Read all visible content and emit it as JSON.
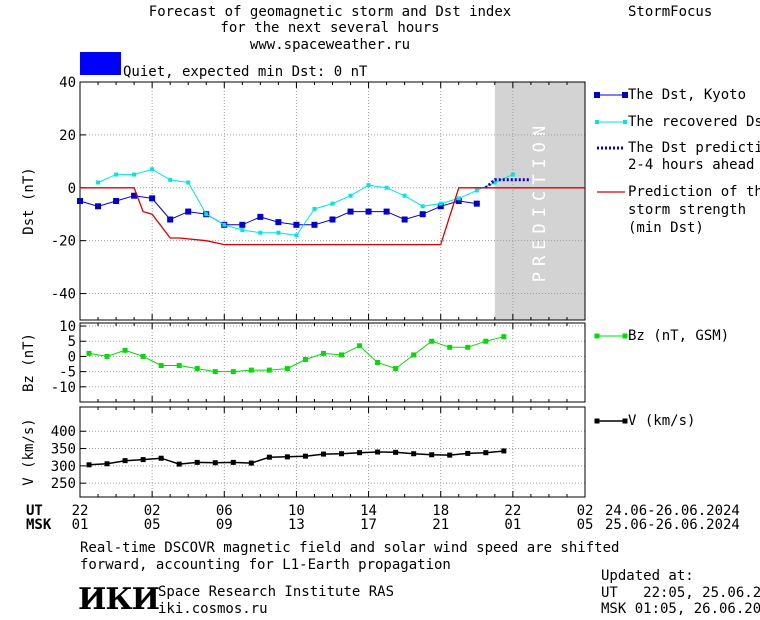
{
  "header": {
    "title_line1": "Forecast of geomagnetic storm and Dst index",
    "title_line2": "for the next several hours",
    "url": "www.spaceweather.ru",
    "brand": "StormFocus"
  },
  "status": {
    "text": "Quiet, expected min Dst: 0 nT",
    "color": "#0000ff"
  },
  "prediction_label": "PREDICTION",
  "colors": {
    "dst": "#0000cc",
    "recovered": "#00e5e5",
    "prediction_dst": "#0000cc",
    "storm": "#dd0000",
    "bz": "#00dd00",
    "v": "#000000",
    "prediction_band": "#d3d3d3",
    "grid": "#9aa0a0"
  },
  "legend": {
    "dst": "The Dst, Kyoto",
    "recovered": "The recovered Dst",
    "prediction_line1": "The Dst prediction",
    "prediction_line2": "2-4 hours ahead",
    "storm_line1": "Prediction of the",
    "storm_line2": "storm strength",
    "storm_line3": "(min Dst)",
    "bz": "Bz (nT, GSM)",
    "v": "V (km/s)"
  },
  "time_axis": {
    "ut_label": "UT",
    "msk_label": "MSK",
    "ut_ticks": [
      "22",
      "02",
      "06",
      "10",
      "14",
      "18",
      "22",
      "02"
    ],
    "msk_ticks": [
      "01",
      "05",
      "09",
      "13",
      "17",
      "21",
      "01",
      "05"
    ],
    "ut_range": "24.06-26.06.2024",
    "msk_range": "25.06-26.06.2024"
  },
  "chart_data": [
    {
      "type": "line",
      "panel": "dst",
      "ylabel": "Dst (nT)",
      "x_unit": "hours from 22 UT, 24.06.2024",
      "xlim": [
        0,
        28
      ],
      "ylim": [
        -50,
        40
      ],
      "yticks": [
        40,
        20,
        0,
        -20,
        -40
      ],
      "prediction_region": [
        23,
        28
      ],
      "series": [
        {
          "name": "The Dst, Kyoto",
          "x": [
            0,
            1,
            2,
            3,
            4,
            5,
            6,
            7,
            8,
            9,
            10,
            11,
            12,
            13,
            14,
            15,
            16,
            17,
            18,
            19,
            20,
            21,
            22
          ],
          "y": [
            -5,
            -7,
            -5,
            -3,
            -4,
            -12,
            -9,
            -10,
            -14,
            -14,
            -11,
            -13,
            -14,
            -14,
            -12,
            -9,
            -9,
            -9,
            -12,
            -10,
            -7,
            -5,
            -6
          ]
        },
        {
          "name": "The recovered Dst",
          "x": [
            1,
            2,
            3,
            4,
            5,
            6,
            7,
            8,
            9,
            10,
            11,
            12,
            13,
            14,
            15,
            16,
            17,
            18,
            19,
            20,
            21,
            22,
            23,
            24
          ],
          "y": [
            2,
            5,
            5,
            7,
            3,
            2,
            -10,
            -14,
            -16,
            -17,
            -17,
            -18,
            -8,
            -6,
            -3,
            1,
            0,
            -3,
            -7,
            -6,
            -4,
            -1,
            2,
            5
          ]
        },
        {
          "name": "The Dst prediction 2-4 hours ahead",
          "x": [
            22.5,
            23,
            24,
            25
          ],
          "y": [
            0,
            3,
            3,
            3
          ]
        },
        {
          "name": "Prediction of the storm strength (min Dst)",
          "x": [
            0,
            3,
            3.5,
            4,
            5,
            5.5,
            7,
            8,
            8.1,
            20,
            21,
            28
          ],
          "y": [
            0,
            0,
            -9,
            -10,
            -19,
            -19,
            -20,
            -21.5,
            -21.5,
            -21.5,
            0,
            0
          ]
        }
      ]
    },
    {
      "type": "line",
      "panel": "bz",
      "ylabel": "Bz (nT)",
      "xlim": [
        0,
        28
      ],
      "ylim": [
        -15,
        11
      ],
      "yticks": [
        10,
        5,
        0,
        -5,
        -10
      ],
      "series": [
        {
          "name": "Bz (nT, GSM)",
          "x": [
            0.5,
            1.5,
            2.5,
            3.5,
            4.5,
            5.5,
            6.5,
            7.5,
            8.5,
            9.5,
            10.5,
            11.5,
            12.5,
            13.5,
            14.5,
            15.5,
            16.5,
            17.5,
            18.5,
            19.5,
            20.5,
            21.5,
            22.5,
            23.5
          ],
          "y": [
            1,
            0,
            2,
            0,
            -3,
            -3,
            -4,
            -5,
            -5,
            -4.5,
            -4.5,
            -4,
            -1,
            1,
            0.5,
            3.5,
            -2,
            -4,
            0.5,
            5,
            3,
            3,
            5,
            6.5
          ]
        }
      ]
    },
    {
      "type": "line",
      "panel": "v",
      "ylabel": "V (km/s)",
      "xlim": [
        0,
        28
      ],
      "ylim": [
        210,
        470
      ],
      "yticks": [
        400,
        350,
        300,
        250
      ],
      "series": [
        {
          "name": "V (km/s)",
          "x": [
            0.5,
            1.5,
            2.5,
            3.5,
            4.5,
            5.5,
            6.5,
            7.5,
            8.5,
            9.5,
            10.5,
            11.5,
            12.5,
            13.5,
            14.5,
            15.5,
            16.5,
            17.5,
            18.5,
            19.5,
            20.5,
            21.5,
            22.5,
            23.5
          ],
          "y": [
            303,
            306,
            315,
            318,
            322,
            305,
            310,
            309,
            310,
            308,
            325,
            326,
            328,
            334,
            335,
            338,
            340,
            339,
            335,
            332,
            331,
            336,
            338,
            343
          ]
        }
      ]
    }
  ],
  "footer": {
    "note_line1": "Real-time DSCOVR magnetic field and solar wind speed are shifted",
    "note_line2": "forward, accounting for L1-Earth propagation",
    "institute": "Space Research Institute RAS",
    "site": "iki.cosmos.ru",
    "logo_text": "ИКИ",
    "updated_label": "Updated at:",
    "updated_ut": "UT   22:05, 25.06.2024",
    "updated_msk": "MSK 01:05, 26.06.2024"
  }
}
